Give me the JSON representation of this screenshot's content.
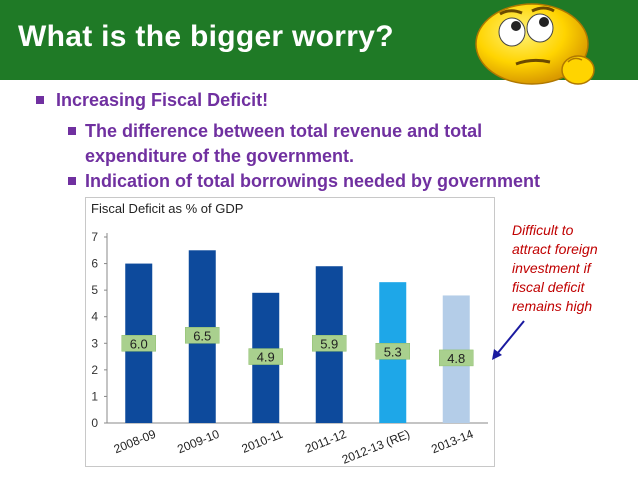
{
  "slide": {
    "title": "What is the bigger worry?",
    "bullets": [
      "Increasing Fiscal Deficit!",
      "The difference between total revenue and total",
      "expenditure of the government.",
      "Indication of total borrowings needed by government"
    ],
    "annotation": [
      "Difficult to",
      "attract foreign",
      "investment if",
      "fiscal deficit",
      "remains high"
    ],
    "colors": {
      "title_bg": "#1f7a26",
      "bullet_text": "#7030a0",
      "annotation": "#c00000",
      "bar_dark": "#0d4a9c",
      "bar_mid": "#1ea7e8",
      "bar_light": "#b4cde8",
      "label_box": "#a9d08e"
    },
    "icon": "thinking-face-emoji-icon"
  },
  "chart_data": {
    "type": "bar",
    "title": "Fiscal Deficit as % of GDP",
    "categories": [
      "2008-09",
      "2009-10",
      "2010-11",
      "2011-12",
      "2012-13 (RE)",
      "2013-14"
    ],
    "values": [
      6.0,
      6.5,
      4.9,
      5.9,
      5.3,
      4.8
    ],
    "data_labels": [
      "6.0",
      "6.5",
      "4.9",
      "5.9",
      "5.3",
      "4.8"
    ],
    "yticks": [
      "0",
      "1",
      "2",
      "3",
      "4",
      "5",
      "6",
      "7"
    ],
    "ylim": [
      0,
      7
    ],
    "grid": false,
    "legend": "none"
  }
}
